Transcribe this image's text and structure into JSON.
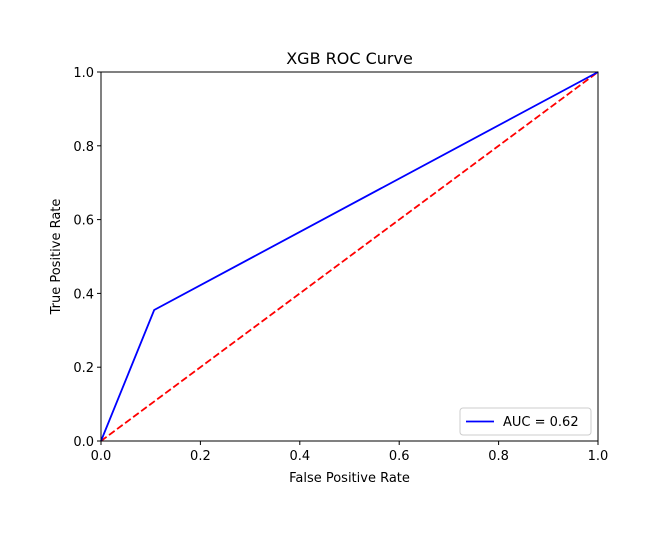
{
  "chart_data": {
    "type": "line",
    "title": "XGB ROC Curve",
    "xlabel": "False Positive Rate",
    "ylabel": "True Positive Rate",
    "xlim": [
      0,
      1
    ],
    "ylim": [
      0,
      1
    ],
    "xticks": [
      "0.0",
      "0.2",
      "0.4",
      "0.6",
      "0.8",
      "1.0"
    ],
    "yticks": [
      "0.0",
      "0.2",
      "0.4",
      "0.6",
      "0.8",
      "1.0"
    ],
    "grid": false,
    "legend_position": "lower-right",
    "series": [
      {
        "name": "AUC = 0.62",
        "color": "#0000ff",
        "style": "solid",
        "x": [
          0.0,
          0.107,
          1.0
        ],
        "y": [
          0.0,
          0.355,
          1.0
        ]
      },
      {
        "color": "#ff0000",
        "style": "dashed",
        "x": [
          0.0,
          1.0
        ],
        "y": [
          0.0,
          1.0
        ]
      }
    ]
  }
}
